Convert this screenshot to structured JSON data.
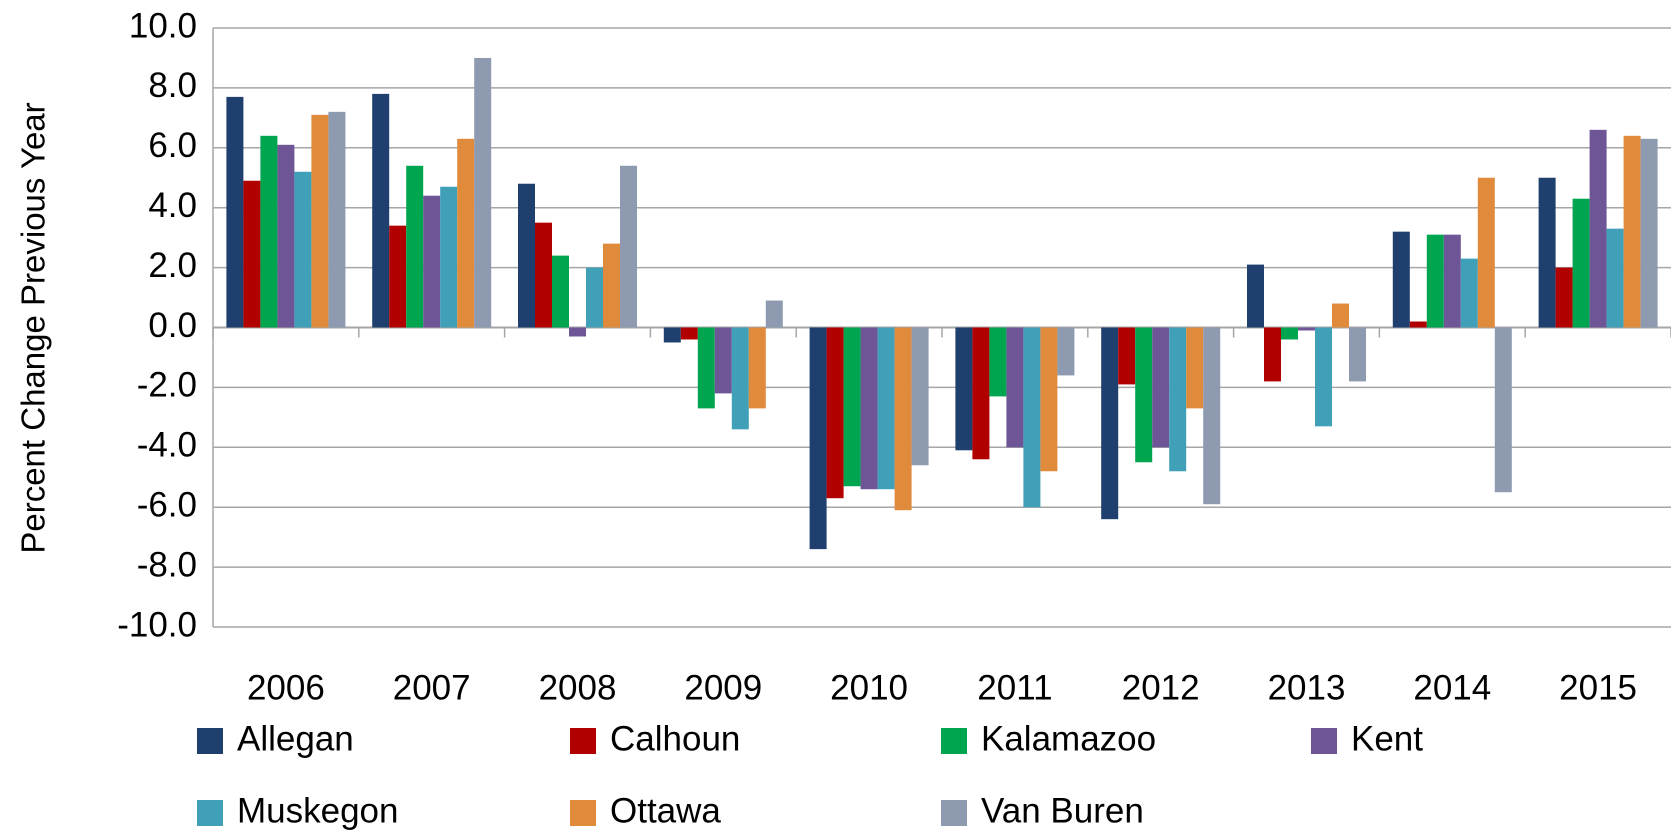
{
  "chart_data": {
    "type": "bar",
    "y_label": "Percent Change Previous Year",
    "categories": [
      "2006",
      "2007",
      "2008",
      "2009",
      "2010",
      "2011",
      "2012",
      "2013",
      "2014",
      "2015"
    ],
    "series": [
      {
        "name": "Allegan",
        "color": "#1f3f6e",
        "values": [
          7.7,
          7.8,
          4.8,
          -0.5,
          -7.4,
          -4.1,
          -6.4,
          2.1,
          3.2,
          5.0
        ]
      },
      {
        "name": "Calhoun",
        "color": "#b00000",
        "values": [
          4.9,
          3.4,
          3.5,
          -0.4,
          -5.7,
          -4.4,
          -1.9,
          -1.8,
          0.2,
          2.0
        ]
      },
      {
        "name": "Kalamazoo",
        "color": "#00a550",
        "values": [
          6.4,
          5.4,
          2.4,
          -2.7,
          -5.3,
          -2.3,
          -4.5,
          -0.4,
          3.1,
          4.3
        ]
      },
      {
        "name": "Kent",
        "color": "#6e5596",
        "values": [
          6.1,
          4.4,
          -0.3,
          -2.2,
          -5.4,
          -4.0,
          -4.0,
          -0.1,
          3.1,
          6.6
        ]
      },
      {
        "name": "Muskegon",
        "color": "#3fa0b8",
        "values": [
          5.2,
          4.7,
          2.0,
          -3.4,
          -5.4,
          -6.0,
          -4.8,
          -3.3,
          2.3,
          3.3
        ]
      },
      {
        "name": "Ottawa",
        "color": "#e08a3c",
        "values": [
          7.1,
          6.3,
          2.8,
          -2.7,
          -6.1,
          -4.8,
          -2.7,
          0.8,
          5.0,
          6.4
        ]
      },
      {
        "name": "Van Buren",
        "color": "#8e9ab0",
        "values": [
          7.2,
          9.0,
          5.4,
          0.9,
          -4.6,
          -1.6,
          -5.9,
          -1.8,
          -5.5,
          6.3
        ]
      }
    ],
    "ylim": [
      -10,
      10
    ],
    "yticks": [
      {
        "value": -10,
        "label": "-10.0"
      },
      {
        "value": -8,
        "label": "-8.0"
      },
      {
        "value": -6,
        "label": "-6.0"
      },
      {
        "value": -4,
        "label": "-4.0"
      },
      {
        "value": -2,
        "label": "-2.0"
      },
      {
        "value": 0,
        "label": "0.0"
      },
      {
        "value": 2,
        "label": "2.0"
      },
      {
        "value": 4,
        "label": "4.0"
      },
      {
        "value": 6,
        "label": "6.0"
      },
      {
        "value": 8,
        "label": "8.0"
      },
      {
        "value": 10,
        "label": "10.0"
      }
    ],
    "grid": true
  }
}
